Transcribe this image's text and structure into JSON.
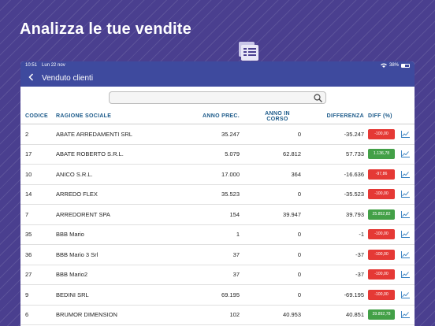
{
  "headline": "Analizza le tue vendite",
  "colors": {
    "background": "#4a3f8f",
    "navbar": "#3e4a9e",
    "header_text": "#1c5a8a",
    "negative": "#e53935",
    "positive": "#43a047"
  },
  "statusbar": {
    "time": "10:51",
    "date": "Lun 22 nov",
    "battery": "38%"
  },
  "navbar": {
    "back_icon": "chevron-left-icon",
    "title": "Venduto clienti"
  },
  "search": {
    "value": "",
    "placeholder": ""
  },
  "table": {
    "headers": {
      "codice": "CODICE",
      "ragione": "RAGIONE SOCIALE",
      "prec": "ANNO PREC.",
      "corso": "ANNO IN CORSO",
      "diff": "DIFFERENZA",
      "pct": "DIFF (%)"
    },
    "rows": [
      {
        "codice": "2",
        "ragione": "ABATE ARREDAMENTI SRL",
        "prec": "35.247",
        "corso": "0",
        "diff": "-35.247",
        "pct": "-100,00",
        "sign": "neg"
      },
      {
        "codice": "17",
        "ragione": "ABATE ROBERTO S.R.L.",
        "prec": "5.079",
        "corso": "62.812",
        "diff": "57.733",
        "pct": "1.136,78",
        "sign": "pos"
      },
      {
        "codice": "10",
        "ragione": "ANICO S.R.L.",
        "prec": "17.000",
        "corso": "364",
        "diff": "-16.636",
        "pct": "-97,86",
        "sign": "neg"
      },
      {
        "codice": "14",
        "ragione": "ARREDO FLEX",
        "prec": "35.523",
        "corso": "0",
        "diff": "-35.523",
        "pct": "-100,00",
        "sign": "neg"
      },
      {
        "codice": "7",
        "ragione": "ARREDORENT SPA",
        "prec": "154",
        "corso": "39.947",
        "diff": "39.793",
        "pct": "25.852,82",
        "sign": "pos"
      },
      {
        "codice": "35",
        "ragione": "BBB Mario",
        "prec": "1",
        "corso": "0",
        "diff": "-1",
        "pct": "-100,00",
        "sign": "neg"
      },
      {
        "codice": "36",
        "ragione": "BBB Mario 3 Srl",
        "prec": "37",
        "corso": "0",
        "diff": "-37",
        "pct": "-100,00",
        "sign": "neg"
      },
      {
        "codice": "27",
        "ragione": "BBB Mario2",
        "prec": "37",
        "corso": "0",
        "diff": "-37",
        "pct": "-100,00",
        "sign": "neg"
      },
      {
        "codice": "9",
        "ragione": "BEDINI SRL",
        "prec": "69.195",
        "corso": "0",
        "diff": "-69.195",
        "pct": "-100,00",
        "sign": "neg"
      },
      {
        "codice": "6",
        "ragione": "BRUMOR DIMENSION",
        "prec": "102",
        "corso": "40.953",
        "diff": "40.851",
        "pct": "39.892,78",
        "sign": "pos"
      }
    ]
  }
}
